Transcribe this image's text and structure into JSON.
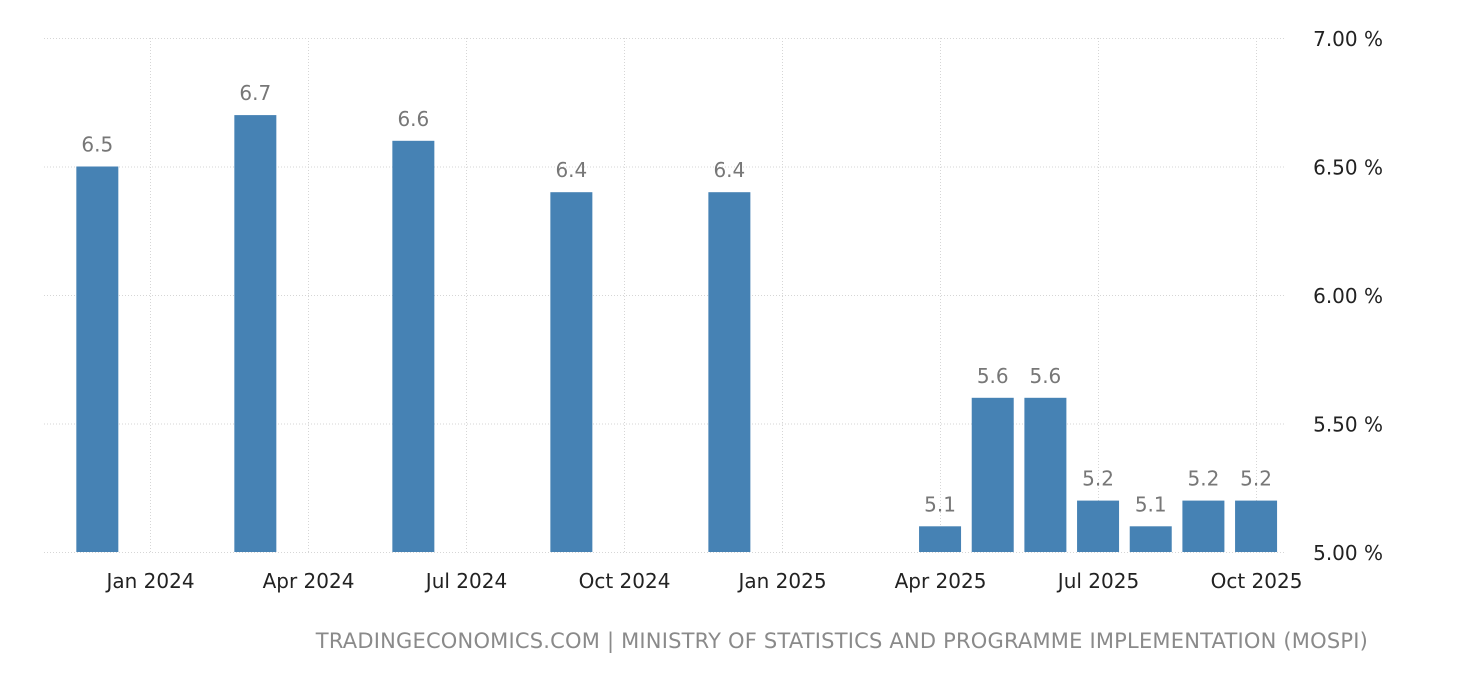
{
  "chart_data": {
    "type": "bar",
    "categories": [
      "Dec 2023",
      "Mar 2024",
      "Jun 2024",
      "Sep 2024",
      "Dec 2024",
      "Apr 2025",
      "May 2025",
      "Jun 2025",
      "Jul 2025",
      "Aug 2025",
      "Sep 2025",
      "Oct 2025"
    ],
    "values": [
      6.5,
      6.7,
      6.6,
      6.4,
      6.4,
      5.1,
      5.6,
      5.6,
      5.2,
      5.1,
      5.2,
      5.2
    ],
    "data_labels": [
      "6.5",
      "6.7",
      "6.6",
      "6.4",
      "6.4",
      "5.1",
      "5.6",
      "5.6",
      "5.2",
      "5.1",
      "5.2",
      "5.2"
    ],
    "title": "",
    "xlabel": "",
    "ylabel": "",
    "ylim": [
      5.0,
      7.0
    ],
    "y_ticks": [
      5.0,
      5.5,
      6.0,
      6.5,
      7.0
    ],
    "y_tick_labels": [
      "5.00 %",
      "5.50 %",
      "6.00 %",
      "6.50 %",
      "7.00 %"
    ],
    "y_axis_position": "right",
    "x_ticks": [
      "2024-01",
      "2024-04",
      "2024-07",
      "2024-10",
      "2025-01",
      "2025-04",
      "2025-07",
      "2025-10"
    ],
    "x_tick_labels": [
      "Jan 2024",
      "Apr 2024",
      "Jul 2024",
      "Oct 2024",
      "Jan 2025",
      "Apr 2025",
      "Jul 2025",
      "Oct 2025"
    ],
    "grid": true,
    "bar_color": "#4682b4"
  },
  "footer": {
    "source": "TRADINGECONOMICS.COM | MINISTRY OF STATISTICS AND PROGRAMME IMPLEMENTATION (MOSPI)"
  }
}
